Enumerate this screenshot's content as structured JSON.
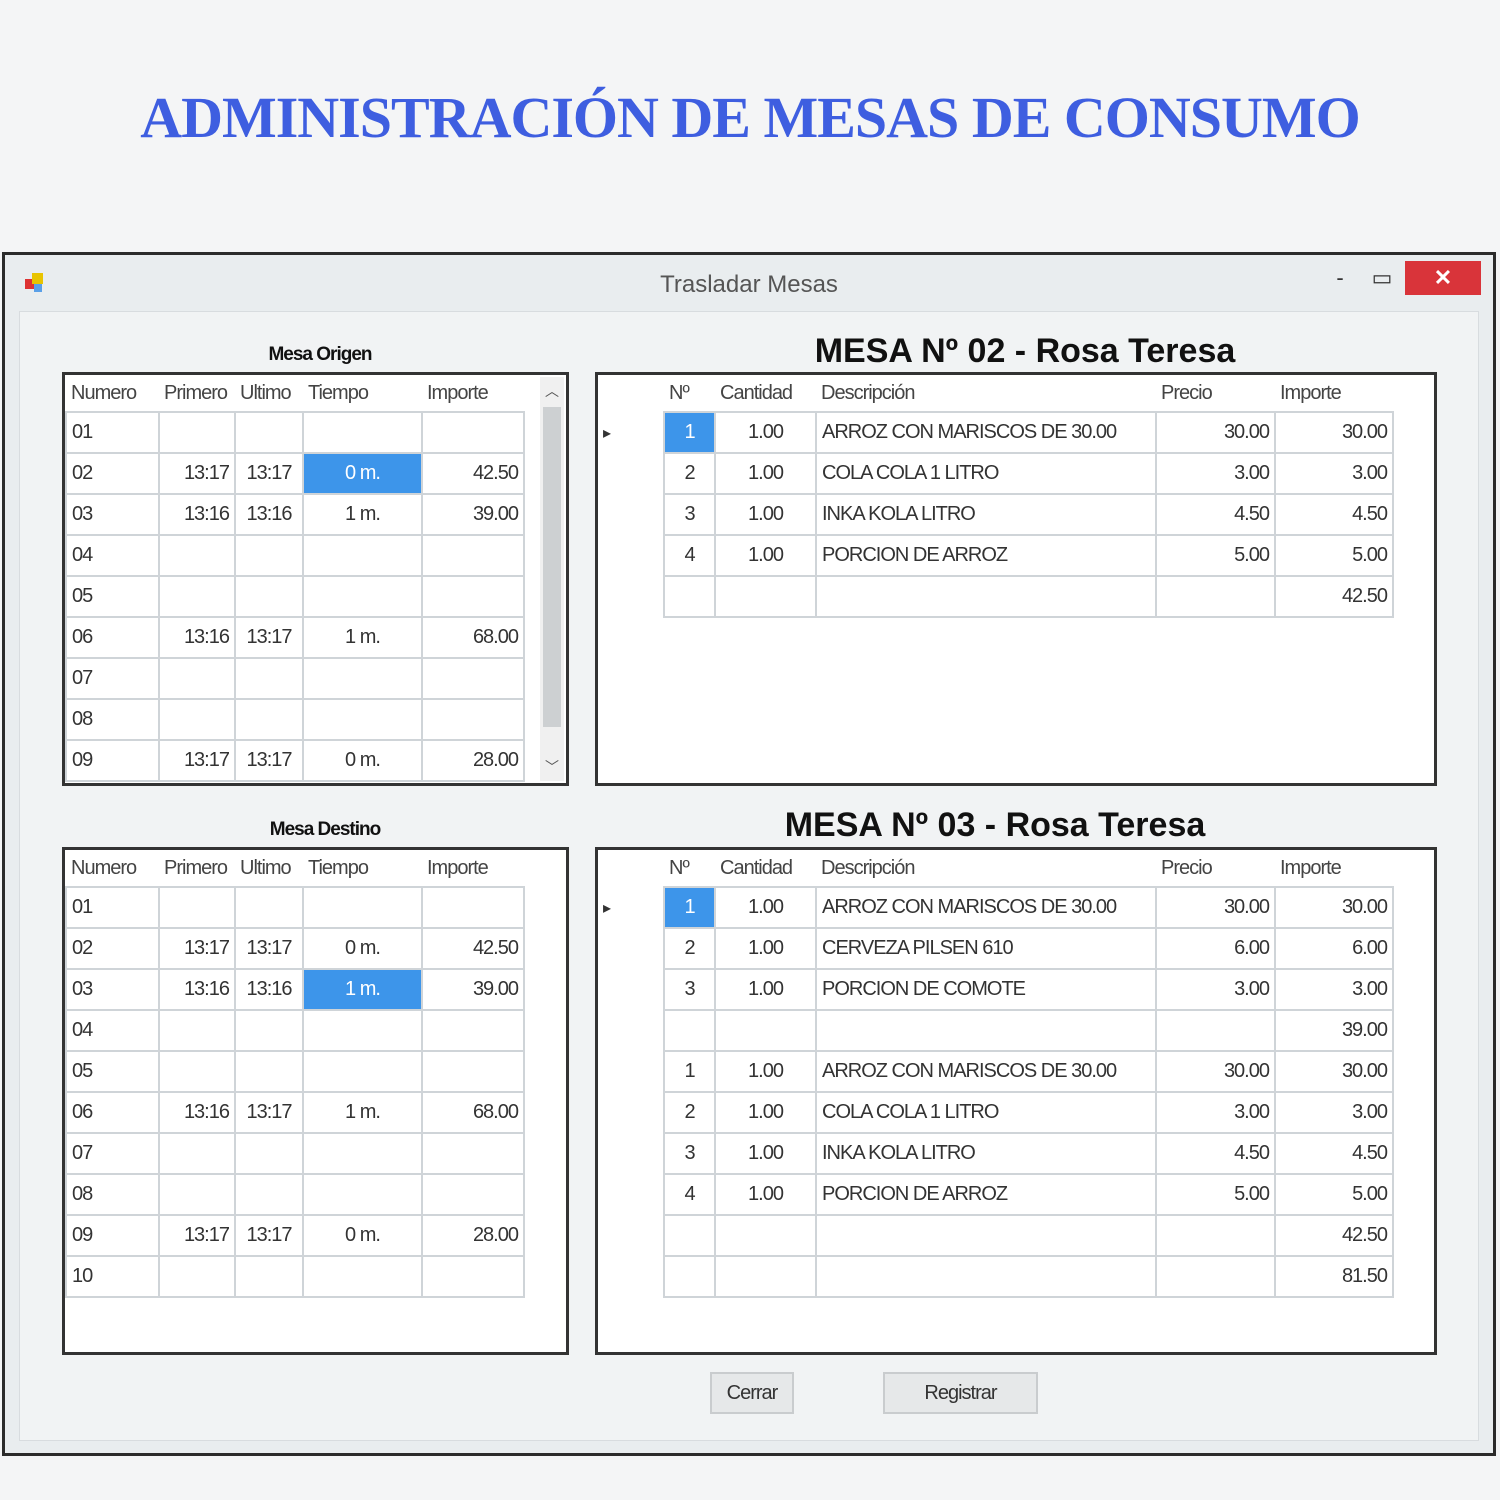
{
  "banner": "ADMINISTRACIÓN DE MESAS DE CONSUMO",
  "window": {
    "title": "Trasladar Mesas",
    "minimize": "-",
    "maximize": "▭",
    "close": "✕"
  },
  "origen": {
    "label": "Mesa Origen",
    "columns": [
      "Numero",
      "Primero",
      "Ultimo",
      "Tiempo",
      "Importe"
    ],
    "rows": [
      [
        "01",
        "",
        "",
        "",
        ""
      ],
      [
        "02",
        "13:17",
        "13:17",
        "0 m.",
        "42.50"
      ],
      [
        "03",
        "13:16",
        "13:16",
        "1 m.",
        "39.00"
      ],
      [
        "04",
        "",
        "",
        "",
        ""
      ],
      [
        "05",
        "",
        "",
        "",
        ""
      ],
      [
        "06",
        "13:16",
        "13:17",
        "1 m.",
        "68.00"
      ],
      [
        "07",
        "",
        "",
        "",
        ""
      ],
      [
        "08",
        "",
        "",
        "",
        ""
      ],
      [
        "09",
        "13:17",
        "13:17",
        "0 m.",
        "28.00"
      ]
    ],
    "selected_row": 1
  },
  "destino": {
    "label": "Mesa Destino",
    "columns": [
      "Numero",
      "Primero",
      "Ultimo",
      "Tiempo",
      "Importe"
    ],
    "rows": [
      [
        "01",
        "",
        "",
        "",
        ""
      ],
      [
        "02",
        "13:17",
        "13:17",
        "0 m.",
        "42.50"
      ],
      [
        "03",
        "13:16",
        "13:16",
        "1 m.",
        "39.00"
      ],
      [
        "04",
        "",
        "",
        "",
        ""
      ],
      [
        "05",
        "",
        "",
        "",
        ""
      ],
      [
        "06",
        "13:16",
        "13:17",
        "1 m.",
        "68.00"
      ],
      [
        "07",
        "",
        "",
        "",
        ""
      ],
      [
        "08",
        "",
        "",
        "",
        ""
      ],
      [
        "09",
        "13:17",
        "13:17",
        "0 m.",
        "28.00"
      ],
      [
        "10",
        "",
        "",
        "",
        ""
      ]
    ],
    "selected_row": 2
  },
  "mesa_origen_detail": {
    "title": "MESA Nº 02 - Rosa Teresa",
    "columns": [
      "Nº",
      "Cantidad",
      "Descripción",
      "Precio",
      "Importe"
    ],
    "rows": [
      [
        "1",
        "1.00",
        "ARROZ CON MARISCOS DE 30.00",
        "30.00",
        "30.00"
      ],
      [
        "2",
        "1.00",
        "COLA COLA 1 LITRO",
        "3.00",
        "3.00"
      ],
      [
        "3",
        "1.00",
        "INKA KOLA LITRO",
        "4.50",
        "4.50"
      ],
      [
        "4",
        "1.00",
        "PORCION DE ARROZ",
        "5.00",
        "5.00"
      ],
      [
        "",
        "",
        "",
        "",
        "42.50"
      ]
    ]
  },
  "mesa_destino_detail": {
    "title": "MESA Nº 03 - Rosa Teresa",
    "columns": [
      "Nº",
      "Cantidad",
      "Descripción",
      "Precio",
      "Importe"
    ],
    "rows": [
      [
        "1",
        "1.00",
        "ARROZ CON MARISCOS DE 30.00",
        "30.00",
        "30.00"
      ],
      [
        "2",
        "1.00",
        "CERVEZA PILSEN 610",
        "6.00",
        "6.00"
      ],
      [
        "3",
        "1.00",
        "PORCION DE COMOTE",
        "3.00",
        "3.00"
      ],
      [
        "",
        "",
        "",
        "",
        "39.00"
      ],
      [
        "1",
        "1.00",
        "ARROZ CON MARISCOS DE 30.00",
        "30.00",
        "30.00"
      ],
      [
        "2",
        "1.00",
        "COLA COLA 1 LITRO",
        "3.00",
        "3.00"
      ],
      [
        "3",
        "1.00",
        "INKA KOLA LITRO",
        "4.50",
        "4.50"
      ],
      [
        "4",
        "1.00",
        "PORCION DE ARROZ",
        "5.00",
        "5.00"
      ],
      [
        "",
        "",
        "",
        "",
        "42.50"
      ],
      [
        "",
        "",
        "",
        "",
        "81.50"
      ]
    ]
  },
  "buttons": {
    "cerrar": "Cerrar",
    "registrar": "Registrar"
  },
  "colors": {
    "banner": "#3e5ee0",
    "selection": "#3d95ea",
    "close": "#d9343a"
  }
}
